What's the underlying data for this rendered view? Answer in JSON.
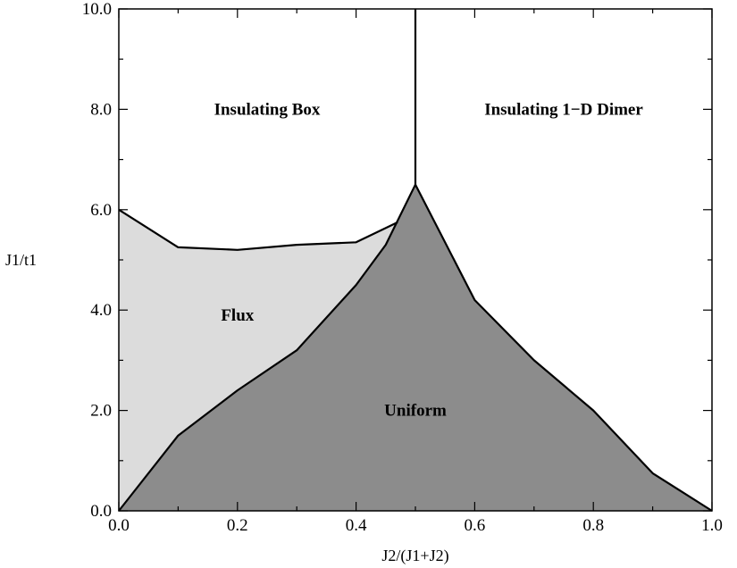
{
  "chart_data": {
    "type": "area",
    "title": "",
    "xlabel": "J2/(J1+J2)",
    "ylabel": "J1/t1",
    "xlim": [
      0.0,
      1.0
    ],
    "ylim": [
      0.0,
      10.0
    ],
    "x_ticks": [
      0.0,
      0.2,
      0.4,
      0.6,
      0.8,
      1.0
    ],
    "x_tick_labels": [
      "0.0",
      "0.2",
      "0.4",
      "0.6",
      "0.8",
      "1.0"
    ],
    "y_ticks": [
      0.0,
      2.0,
      4.0,
      6.0,
      8.0,
      10.0
    ],
    "y_tick_labels": [
      "0.0",
      "2.0",
      "4.0",
      "6.0",
      "8.0",
      "10.0"
    ],
    "x_minor_step": 0.1,
    "y_minor_step": 1.0,
    "grid": false,
    "regions": [
      {
        "label": "Flux",
        "fill": "#dcdcdc",
        "boundary": [
          [
            0.0,
            6.0
          ],
          [
            0.1,
            5.25
          ],
          [
            0.2,
            5.2
          ],
          [
            0.3,
            5.3
          ],
          [
            0.4,
            5.35
          ],
          [
            0.47,
            5.75
          ],
          [
            0.5,
            6.5
          ],
          [
            0.45,
            5.3
          ],
          [
            0.4,
            4.5
          ],
          [
            0.3,
            3.2
          ],
          [
            0.2,
            2.4
          ],
          [
            0.1,
            1.5
          ],
          [
            0.0,
            0.0
          ]
        ],
        "label_at": [
          0.2,
          3.9
        ]
      },
      {
        "label": "Uniform",
        "fill": "#8c8c8c",
        "boundary": [
          [
            0.0,
            0.0
          ],
          [
            0.1,
            1.5
          ],
          [
            0.2,
            2.4
          ],
          [
            0.3,
            3.2
          ],
          [
            0.4,
            4.5
          ],
          [
            0.45,
            5.3
          ],
          [
            0.5,
            6.5
          ],
          [
            0.6,
            4.2
          ],
          [
            0.7,
            3.0
          ],
          [
            0.8,
            2.0
          ],
          [
            0.9,
            0.75
          ],
          [
            1.0,
            0.0
          ]
        ],
        "label_at": [
          0.5,
          2.0
        ]
      },
      {
        "label": "Insulating Box",
        "fill": "none",
        "label_at": [
          0.25,
          8.0
        ]
      },
      {
        "label": "Insulating 1−D Dimer",
        "fill": "none",
        "label_at": [
          0.75,
          8.0
        ]
      }
    ],
    "boundary_lines": [
      {
        "name": "flux-insulating-boundary",
        "points": [
          [
            0.0,
            6.0
          ],
          [
            0.1,
            5.25
          ],
          [
            0.2,
            5.2
          ],
          [
            0.3,
            5.3
          ],
          [
            0.4,
            5.35
          ],
          [
            0.47,
            5.75
          ]
        ]
      },
      {
        "name": "uniform-boundary",
        "points": [
          [
            0.0,
            0.0
          ],
          [
            0.1,
            1.5
          ],
          [
            0.2,
            2.4
          ],
          [
            0.3,
            3.2
          ],
          [
            0.4,
            4.5
          ],
          [
            0.45,
            5.3
          ],
          [
            0.5,
            6.5
          ],
          [
            0.6,
            4.2
          ],
          [
            0.7,
            3.0
          ],
          [
            0.8,
            2.0
          ],
          [
            0.9,
            0.75
          ],
          [
            1.0,
            0.0
          ]
        ]
      },
      {
        "name": "box-dimer-boundary",
        "points": [
          [
            0.5,
            6.5
          ],
          [
            0.5,
            10.0
          ]
        ]
      }
    ]
  }
}
